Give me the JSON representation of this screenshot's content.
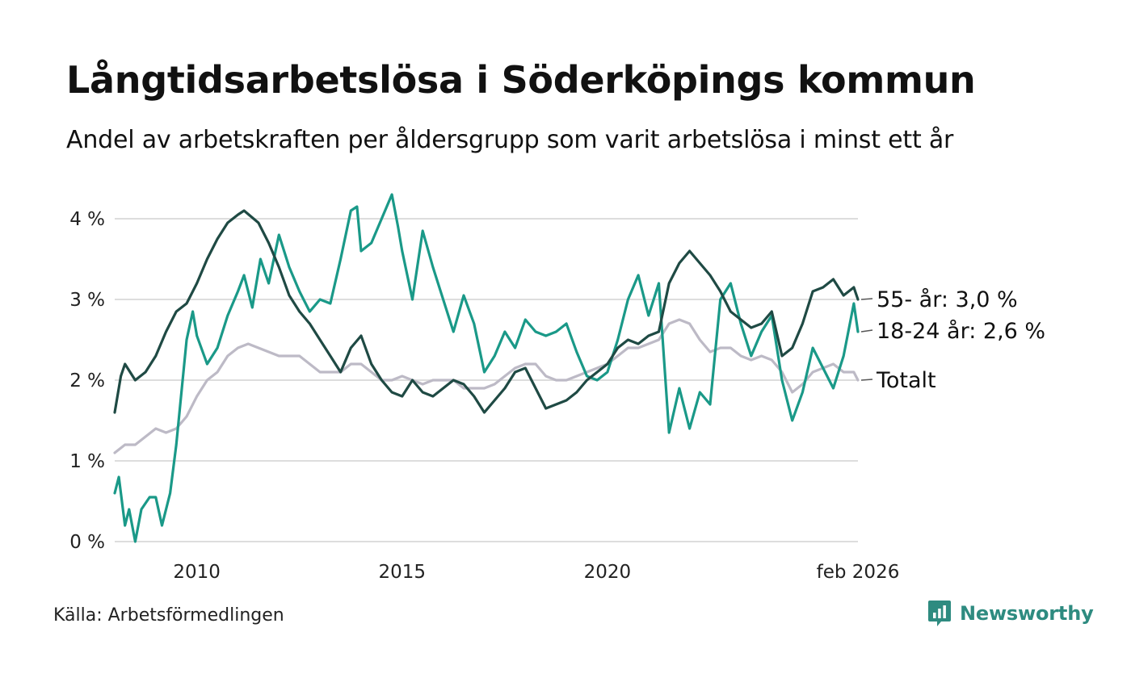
{
  "title": "Långtidsarbetslösa i Söderköpings kommun",
  "subtitle": "Andel av arbetskraften per åldersgrupp som varit arbetslösa i minst ett år",
  "source": "Källa: Arbetsförmedlingen",
  "brand": {
    "name": "Newsworthy",
    "icon": "newsworthy-logo-icon"
  },
  "colors": {
    "series_55": "#1f4a44",
    "series_18_24": "#1a9988",
    "series_total": "#bdbac6",
    "grid": "#dddddd",
    "brand": "#2e8b80"
  },
  "chart_data": {
    "type": "line",
    "title": "Långtidsarbetslösa i Söderköpings kommun",
    "subtitle": "Andel av arbetskraften per åldersgrupp som varit arbetslösa i minst ett år",
    "xlabel": "",
    "ylabel": "",
    "x_range": [
      2008.0,
      2026.1
    ],
    "ylim": [
      0,
      4.4
    ],
    "y_ticks": [
      0,
      1,
      2,
      3,
      4
    ],
    "y_tick_labels": [
      "0 %",
      "1 %",
      "2 %",
      "3 %",
      "4 %"
    ],
    "x_ticks": [
      2010,
      2015,
      2020,
      2026.1
    ],
    "x_tick_labels": [
      "2010",
      "2015",
      "2020",
      "feb 2026"
    ],
    "grid": true,
    "series": [
      {
        "name": "55- år",
        "end_label": "55- år: 3,0 %",
        "color": "#1f4a44",
        "points": [
          [
            2008.0,
            1.6
          ],
          [
            2008.15,
            2.05
          ],
          [
            2008.25,
            2.2
          ],
          [
            2008.5,
            2.0
          ],
          [
            2008.75,
            2.1
          ],
          [
            2009.0,
            2.3
          ],
          [
            2009.25,
            2.6
          ],
          [
            2009.5,
            2.85
          ],
          [
            2009.75,
            2.95
          ],
          [
            2010.0,
            3.2
          ],
          [
            2010.25,
            3.5
          ],
          [
            2010.5,
            3.75
          ],
          [
            2010.75,
            3.95
          ],
          [
            2011.0,
            4.05
          ],
          [
            2011.15,
            4.1
          ],
          [
            2011.5,
            3.95
          ],
          [
            2011.75,
            3.7
          ],
          [
            2012.0,
            3.4
          ],
          [
            2012.25,
            3.05
          ],
          [
            2012.5,
            2.85
          ],
          [
            2012.75,
            2.7
          ],
          [
            2013.0,
            2.5
          ],
          [
            2013.25,
            2.3
          ],
          [
            2013.5,
            2.1
          ],
          [
            2013.75,
            2.4
          ],
          [
            2014.0,
            2.55
          ],
          [
            2014.25,
            2.2
          ],
          [
            2014.5,
            2.0
          ],
          [
            2014.75,
            1.85
          ],
          [
            2015.0,
            1.8
          ],
          [
            2015.25,
            2.0
          ],
          [
            2015.5,
            1.85
          ],
          [
            2015.75,
            1.8
          ],
          [
            2016.0,
            1.9
          ],
          [
            2016.25,
            2.0
          ],
          [
            2016.5,
            1.95
          ],
          [
            2016.75,
            1.8
          ],
          [
            2017.0,
            1.6
          ],
          [
            2017.25,
            1.75
          ],
          [
            2017.5,
            1.9
          ],
          [
            2017.75,
            2.1
          ],
          [
            2018.0,
            2.15
          ],
          [
            2018.25,
            1.9
          ],
          [
            2018.5,
            1.65
          ],
          [
            2018.75,
            1.7
          ],
          [
            2019.0,
            1.75
          ],
          [
            2019.25,
            1.85
          ],
          [
            2019.5,
            2.0
          ],
          [
            2019.75,
            2.1
          ],
          [
            2020.0,
            2.2
          ],
          [
            2020.25,
            2.4
          ],
          [
            2020.5,
            2.5
          ],
          [
            2020.75,
            2.45
          ],
          [
            2021.0,
            2.55
          ],
          [
            2021.25,
            2.6
          ],
          [
            2021.5,
            3.2
          ],
          [
            2021.75,
            3.45
          ],
          [
            2022.0,
            3.6
          ],
          [
            2022.25,
            3.45
          ],
          [
            2022.5,
            3.3
          ],
          [
            2022.75,
            3.1
          ],
          [
            2023.0,
            2.85
          ],
          [
            2023.25,
            2.75
          ],
          [
            2023.5,
            2.65
          ],
          [
            2023.75,
            2.7
          ],
          [
            2024.0,
            2.85
          ],
          [
            2024.25,
            2.3
          ],
          [
            2024.5,
            2.4
          ],
          [
            2024.75,
            2.7
          ],
          [
            2025.0,
            3.1
          ],
          [
            2025.25,
            3.15
          ],
          [
            2025.5,
            3.25
          ],
          [
            2025.75,
            3.05
          ],
          [
            2026.0,
            3.15
          ],
          [
            2026.1,
            3.0
          ]
        ]
      },
      {
        "name": "18-24 år",
        "end_label": "18-24 år: 2,6 %",
        "color": "#1a9988",
        "points": [
          [
            2008.0,
            0.6
          ],
          [
            2008.1,
            0.8
          ],
          [
            2008.25,
            0.2
          ],
          [
            2008.35,
            0.4
          ],
          [
            2008.5,
            0.0
          ],
          [
            2008.65,
            0.4
          ],
          [
            2008.85,
            0.55
          ],
          [
            2009.0,
            0.55
          ],
          [
            2009.15,
            0.2
          ],
          [
            2009.35,
            0.6
          ],
          [
            2009.5,
            1.2
          ],
          [
            2009.75,
            2.5
          ],
          [
            2009.9,
            2.85
          ],
          [
            2010.0,
            2.55
          ],
          [
            2010.25,
            2.2
          ],
          [
            2010.5,
            2.4
          ],
          [
            2010.75,
            2.8
          ],
          [
            2011.0,
            3.1
          ],
          [
            2011.15,
            3.3
          ],
          [
            2011.35,
            2.9
          ],
          [
            2011.55,
            3.5
          ],
          [
            2011.75,
            3.2
          ],
          [
            2012.0,
            3.8
          ],
          [
            2012.25,
            3.4
          ],
          [
            2012.5,
            3.1
          ],
          [
            2012.75,
            2.85
          ],
          [
            2013.0,
            3.0
          ],
          [
            2013.25,
            2.95
          ],
          [
            2013.5,
            3.5
          ],
          [
            2013.75,
            4.1
          ],
          [
            2013.9,
            4.15
          ],
          [
            2014.0,
            3.6
          ],
          [
            2014.25,
            3.7
          ],
          [
            2014.5,
            4.0
          ],
          [
            2014.75,
            4.3
          ],
          [
            2014.9,
            3.9
          ],
          [
            2015.0,
            3.6
          ],
          [
            2015.25,
            3.0
          ],
          [
            2015.5,
            3.85
          ],
          [
            2015.75,
            3.4
          ],
          [
            2016.0,
            3.0
          ],
          [
            2016.25,
            2.6
          ],
          [
            2016.5,
            3.05
          ],
          [
            2016.75,
            2.7
          ],
          [
            2017.0,
            2.1
          ],
          [
            2017.25,
            2.3
          ],
          [
            2017.5,
            2.6
          ],
          [
            2017.75,
            2.4
          ],
          [
            2018.0,
            2.75
          ],
          [
            2018.25,
            2.6
          ],
          [
            2018.5,
            2.55
          ],
          [
            2018.75,
            2.6
          ],
          [
            2019.0,
            2.7
          ],
          [
            2019.25,
            2.35
          ],
          [
            2019.5,
            2.05
          ],
          [
            2019.75,
            2.0
          ],
          [
            2020.0,
            2.1
          ],
          [
            2020.25,
            2.5
          ],
          [
            2020.5,
            3.0
          ],
          [
            2020.75,
            3.3
          ],
          [
            2021.0,
            2.8
          ],
          [
            2021.25,
            3.2
          ],
          [
            2021.5,
            1.35
          ],
          [
            2021.75,
            1.9
          ],
          [
            2022.0,
            1.4
          ],
          [
            2022.25,
            1.85
          ],
          [
            2022.5,
            1.7
          ],
          [
            2022.75,
            3.0
          ],
          [
            2023.0,
            3.2
          ],
          [
            2023.25,
            2.7
          ],
          [
            2023.5,
            2.3
          ],
          [
            2023.75,
            2.6
          ],
          [
            2024.0,
            2.8
          ],
          [
            2024.25,
            2.0
          ],
          [
            2024.5,
            1.5
          ],
          [
            2024.75,
            1.85
          ],
          [
            2025.0,
            2.4
          ],
          [
            2025.25,
            2.15
          ],
          [
            2025.5,
            1.9
          ],
          [
            2025.75,
            2.3
          ],
          [
            2026.0,
            2.95
          ],
          [
            2026.1,
            2.6
          ]
        ]
      },
      {
        "name": "Totalt",
        "end_label": "Totalt",
        "color": "#bdbac6",
        "points": [
          [
            2008.0,
            1.1
          ],
          [
            2008.25,
            1.2
          ],
          [
            2008.5,
            1.2
          ],
          [
            2008.75,
            1.3
          ],
          [
            2009.0,
            1.4
          ],
          [
            2009.25,
            1.35
          ],
          [
            2009.5,
            1.4
          ],
          [
            2009.75,
            1.55
          ],
          [
            2010.0,
            1.8
          ],
          [
            2010.25,
            2.0
          ],
          [
            2010.5,
            2.1
          ],
          [
            2010.75,
            2.3
          ],
          [
            2011.0,
            2.4
          ],
          [
            2011.25,
            2.45
          ],
          [
            2011.5,
            2.4
          ],
          [
            2011.75,
            2.35
          ],
          [
            2012.0,
            2.3
          ],
          [
            2012.25,
            2.3
          ],
          [
            2012.5,
            2.3
          ],
          [
            2012.75,
            2.2
          ],
          [
            2013.0,
            2.1
          ],
          [
            2013.25,
            2.1
          ],
          [
            2013.5,
            2.1
          ],
          [
            2013.75,
            2.2
          ],
          [
            2014.0,
            2.2
          ],
          [
            2014.25,
            2.1
          ],
          [
            2014.5,
            2.0
          ],
          [
            2014.75,
            2.0
          ],
          [
            2015.0,
            2.05
          ],
          [
            2015.25,
            2.0
          ],
          [
            2015.5,
            1.95
          ],
          [
            2015.75,
            2.0
          ],
          [
            2016.0,
            2.0
          ],
          [
            2016.25,
            2.0
          ],
          [
            2016.5,
            1.9
          ],
          [
            2016.75,
            1.9
          ],
          [
            2017.0,
            1.9
          ],
          [
            2017.25,
            1.95
          ],
          [
            2017.5,
            2.05
          ],
          [
            2017.75,
            2.15
          ],
          [
            2018.0,
            2.2
          ],
          [
            2018.25,
            2.2
          ],
          [
            2018.5,
            2.05
          ],
          [
            2018.75,
            2.0
          ],
          [
            2019.0,
            2.0
          ],
          [
            2019.25,
            2.05
          ],
          [
            2019.5,
            2.1
          ],
          [
            2019.75,
            2.15
          ],
          [
            2020.0,
            2.2
          ],
          [
            2020.25,
            2.3
          ],
          [
            2020.5,
            2.4
          ],
          [
            2020.75,
            2.4
          ],
          [
            2021.0,
            2.45
          ],
          [
            2021.25,
            2.5
          ],
          [
            2021.5,
            2.7
          ],
          [
            2021.75,
            2.75
          ],
          [
            2022.0,
            2.7
          ],
          [
            2022.25,
            2.5
          ],
          [
            2022.5,
            2.35
          ],
          [
            2022.75,
            2.4
          ],
          [
            2023.0,
            2.4
          ],
          [
            2023.25,
            2.3
          ],
          [
            2023.5,
            2.25
          ],
          [
            2023.75,
            2.3
          ],
          [
            2024.0,
            2.25
          ],
          [
            2024.25,
            2.1
          ],
          [
            2024.5,
            1.85
          ],
          [
            2024.75,
            1.95
          ],
          [
            2025.0,
            2.1
          ],
          [
            2025.25,
            2.15
          ],
          [
            2025.5,
            2.2
          ],
          [
            2025.75,
            2.1
          ],
          [
            2026.0,
            2.1
          ],
          [
            2026.1,
            2.0
          ]
        ]
      }
    ]
  }
}
